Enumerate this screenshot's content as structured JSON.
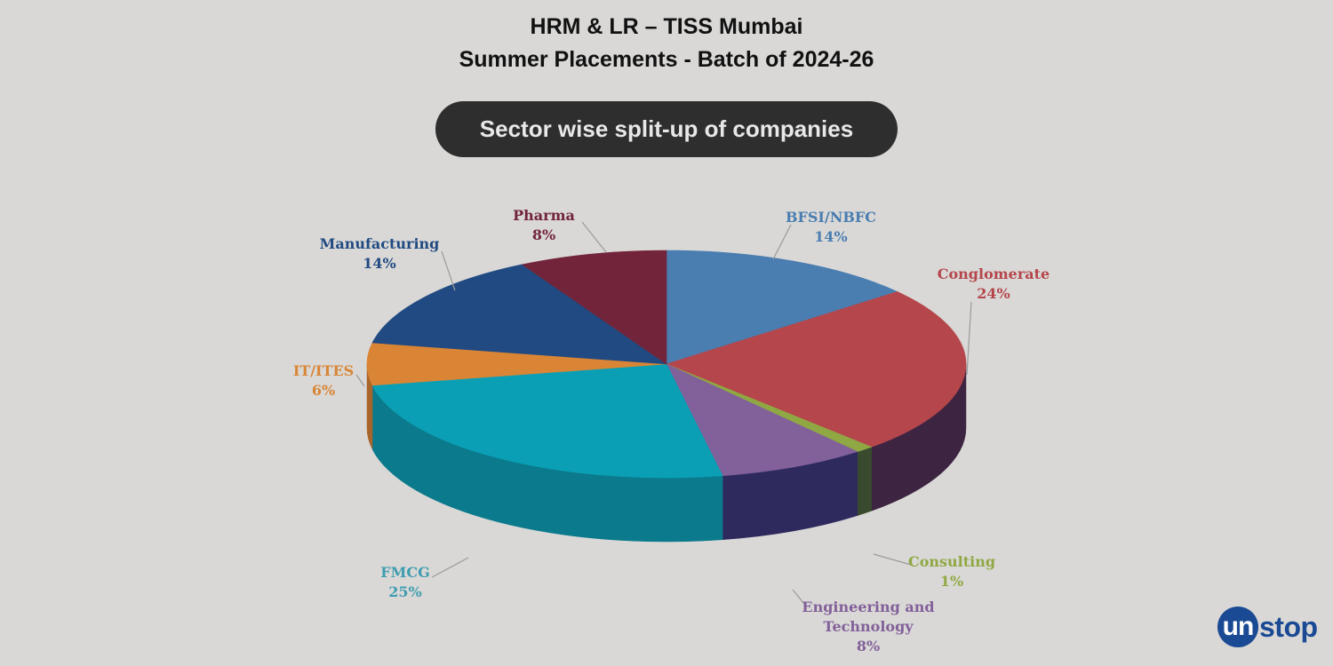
{
  "header": {
    "title_line1": "HRM & LR – TISS Mumbai",
    "title_line2": "Summer Placements - Batch of 2024-26",
    "pill_label": "Sector wise split-up of companies"
  },
  "chart_data": {
    "type": "pie",
    "title": "Sector wise split-up of companies",
    "legend": "none",
    "slices": [
      {
        "name": "BFSI/NBFC",
        "value": 14,
        "label": "14%",
        "color": "#4a7db0",
        "side": "#34597e"
      },
      {
        "name": "Conglomerate",
        "value": 24,
        "label": "24%",
        "color": "#b5464b",
        "side": "#3d2441"
      },
      {
        "name": "Consulting",
        "value": 1,
        "label": "1%",
        "color": "#8fa843",
        "side": "#3a4a2e"
      },
      {
        "name": "Engineering and Technology",
        "value": 8,
        "label": "8%",
        "color": "#82609a",
        "side": "#2e2a5e"
      },
      {
        "name": "FMCG",
        "value": 25,
        "label": "25%",
        "color": "#0b9fb5",
        "side": "#0b7a8c"
      },
      {
        "name": "IT/ITES",
        "value": 6,
        "label": "6%",
        "color": "#d98535",
        "side": "#a8642a"
      },
      {
        "name": "Manufacturing",
        "value": 14,
        "label": "14%",
        "color": "#214a82",
        "side": "#1a3a66"
      },
      {
        "name": "Pharma",
        "value": 8,
        "label": "8%",
        "color": "#72253a",
        "side": "#561c2c"
      }
    ],
    "label_colors": {
      "BFSI/NBFC": "#4a7db0",
      "Conglomerate": "#b5464b",
      "Consulting": "#8fa843",
      "Engineering and Technology": "#82609a",
      "FMCG": "#3f9db0",
      "IT/ITES": "#d98535",
      "Manufacturing": "#214a82",
      "Pharma": "#72253a"
    }
  },
  "logo": {
    "circle": "un",
    "rest": "stop"
  }
}
